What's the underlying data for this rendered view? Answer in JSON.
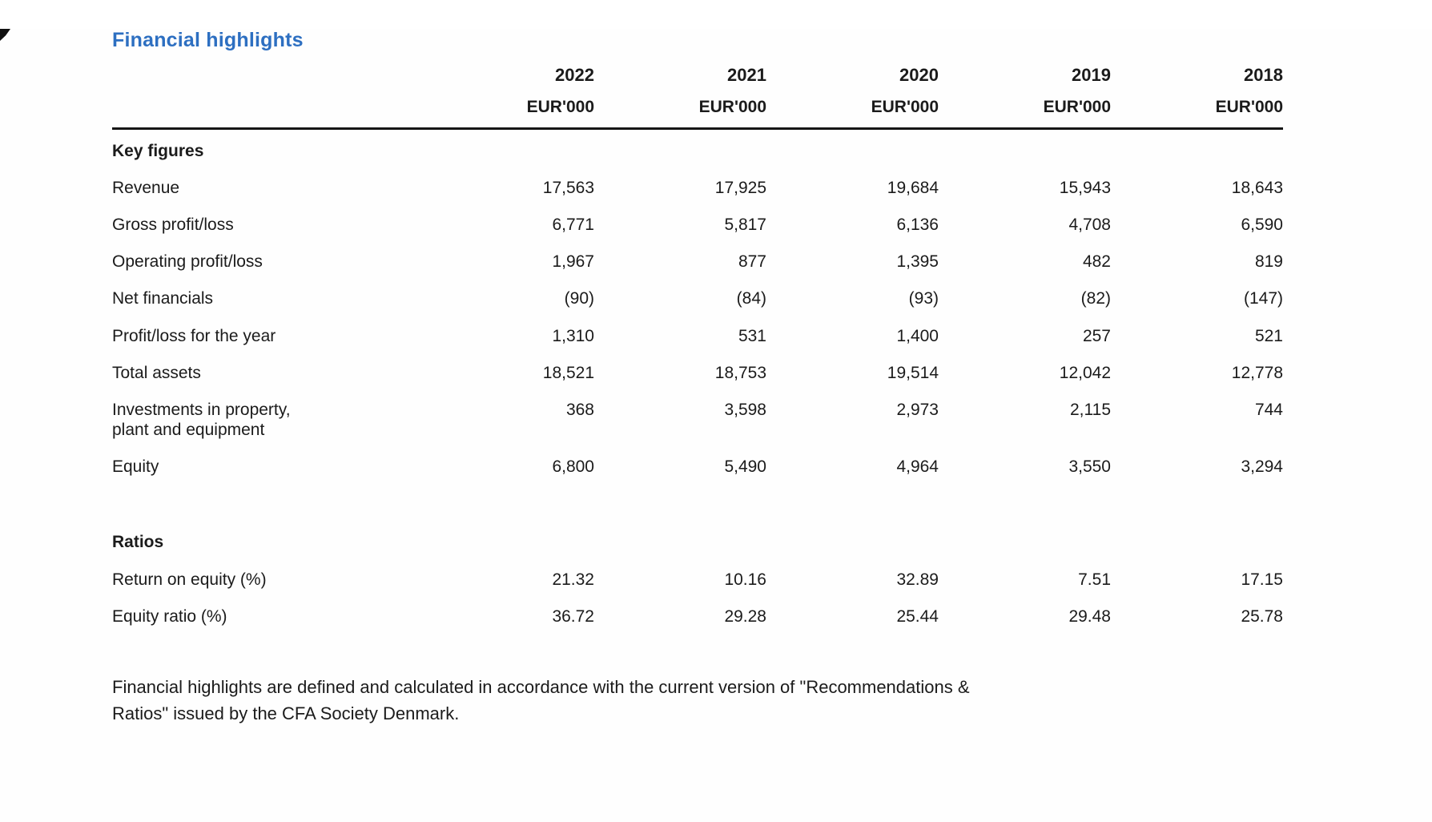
{
  "page": {
    "title": "Financial highlights",
    "title_color": "#2d6fc1",
    "text_color": "#1b1b1b",
    "rule_color": "#161616",
    "background_color": "#fefefe"
  },
  "table": {
    "columns": [
      {
        "year": "2022",
        "unit": "EUR'000"
      },
      {
        "year": "2021",
        "unit": "EUR'000"
      },
      {
        "year": "2020",
        "unit": "EUR'000"
      },
      {
        "year": "2019",
        "unit": "EUR'000"
      },
      {
        "year": "2018",
        "unit": "EUR'000"
      }
    ],
    "sections": [
      {
        "heading": "Key figures",
        "rows": [
          {
            "label": "Revenue",
            "values": [
              "17,563",
              "17,925",
              "19,684",
              "15,943",
              "18,643"
            ]
          },
          {
            "label": "Gross profit/loss",
            "values": [
              "6,771",
              "5,817",
              "6,136",
              "4,708",
              "6,590"
            ]
          },
          {
            "label": "Operating profit/loss",
            "values": [
              "1,967",
              "877",
              "1,395",
              "482",
              "819"
            ]
          },
          {
            "label": "Net financials",
            "values": [
              "(90)",
              "(84)",
              "(93)",
              "(82)",
              "(147)"
            ]
          },
          {
            "label": "Profit/loss for the year",
            "values": [
              "1,310",
              "531",
              "1,400",
              "257",
              "521"
            ]
          },
          {
            "label": "Total assets",
            "values": [
              "18,521",
              "18,753",
              "19,514",
              "12,042",
              "12,778"
            ]
          },
          {
            "label": "Investments in property,\nplant and equipment",
            "values": [
              "368",
              "3,598",
              "2,973",
              "2,115",
              "744"
            ]
          },
          {
            "label": "Equity",
            "values": [
              "6,800",
              "5,490",
              "4,964",
              "3,550",
              "3,294"
            ]
          }
        ]
      },
      {
        "heading": "Ratios",
        "rows": [
          {
            "label": "Return on equity (%)",
            "values": [
              "21.32",
              "10.16",
              "32.89",
              "7.51",
              "17.15"
            ]
          },
          {
            "label": "Equity ratio (%)",
            "values": [
              "36.72",
              "29.28",
              "25.44",
              "29.48",
              "25.78"
            ]
          }
        ]
      }
    ]
  },
  "footnote": "Financial highlights are defined and calculated in accordance with the current version of \"Recommendations &\nRatios\" issued by the CFA Society Denmark."
}
